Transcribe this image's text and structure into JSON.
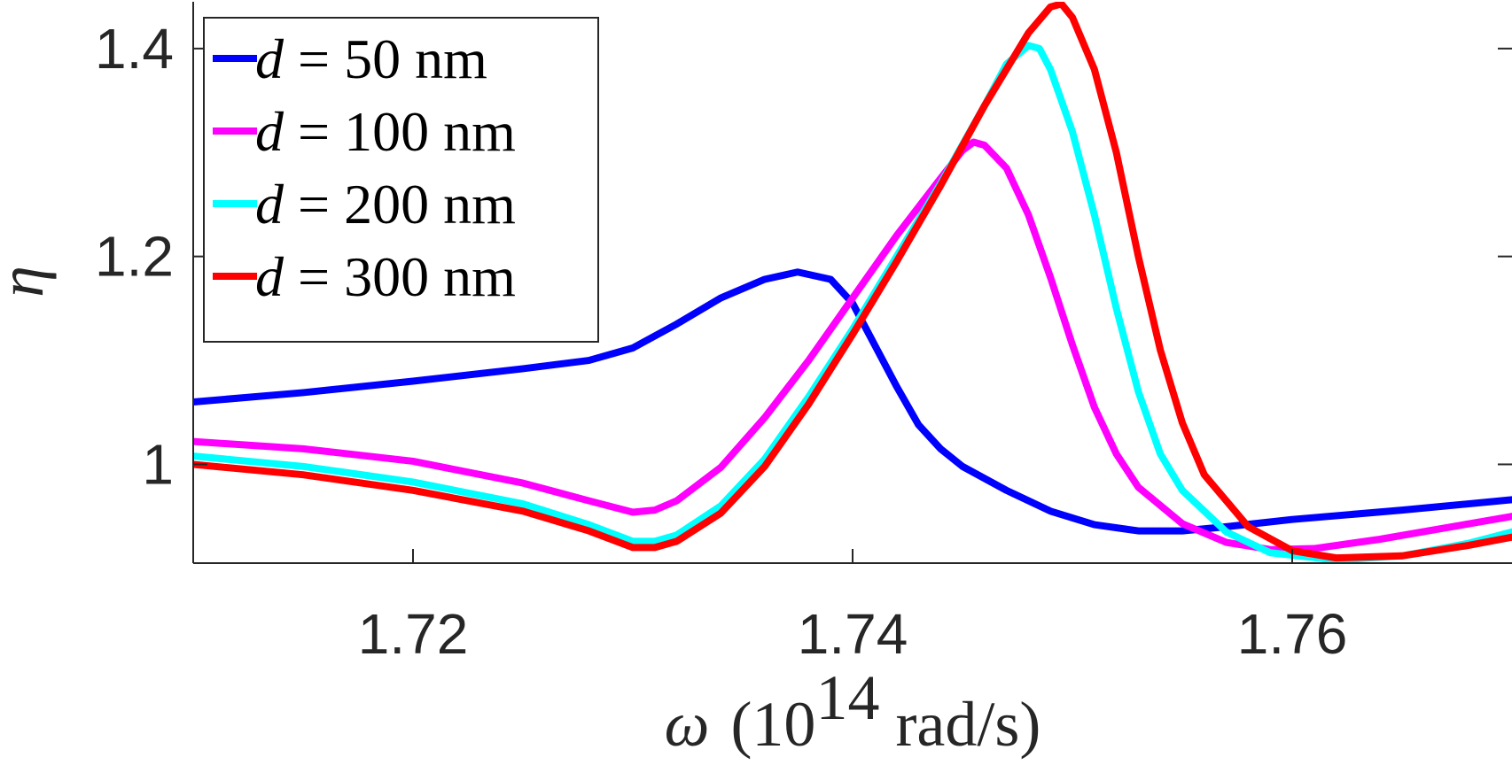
{
  "chart_data": {
    "type": "line",
    "title": "",
    "xlabel": {
      "symbol": "ω",
      "rest": "(10",
      "exponent": "14",
      "unit": "rad/s)"
    },
    "ylabel": "η",
    "xlim": [
      1.71,
      1.77
    ],
    "ylim": [
      0.905,
      1.445
    ],
    "xticks": [
      {
        "value": 1.72,
        "label": "1.72"
      },
      {
        "value": 1.74,
        "label": "1.74"
      },
      {
        "value": 1.76,
        "label": "1.76"
      }
    ],
    "yticks": [
      {
        "value": 1.0,
        "label": "1"
      },
      {
        "value": 1.2,
        "label": "1.2"
      },
      {
        "value": 1.4,
        "label": "1.4"
      }
    ],
    "grid": false,
    "legend_position": "top-left",
    "series": [
      {
        "name": "d = 50 nm",
        "legend_var": "d",
        "legend_rest": " = 50 nm",
        "color": "#0000ff",
        "points": [
          [
            1.71,
            1.06
          ],
          [
            1.715,
            1.069
          ],
          [
            1.72,
            1.08
          ],
          [
            1.725,
            1.092
          ],
          [
            1.728,
            1.1
          ],
          [
            1.73,
            1.112
          ],
          [
            1.732,
            1.135
          ],
          [
            1.734,
            1.16
          ],
          [
            1.736,
            1.178
          ],
          [
            1.7375,
            1.185
          ],
          [
            1.739,
            1.178
          ],
          [
            1.74,
            1.155
          ],
          [
            1.741,
            1.115
          ],
          [
            1.742,
            1.075
          ],
          [
            1.743,
            1.038
          ],
          [
            1.744,
            1.015
          ],
          [
            1.745,
            0.998
          ],
          [
            1.747,
            0.975
          ],
          [
            1.749,
            0.955
          ],
          [
            1.751,
            0.942
          ],
          [
            1.753,
            0.936
          ],
          [
            1.755,
            0.936
          ],
          [
            1.757,
            0.94
          ],
          [
            1.76,
            0.947
          ],
          [
            1.765,
            0.956
          ],
          [
            1.77,
            0.966
          ]
        ]
      },
      {
        "name": "d = 100 nm",
        "legend_var": "d",
        "legend_rest": " = 100 nm",
        "color": "#ff00ff",
        "points": [
          [
            1.71,
            1.022
          ],
          [
            1.715,
            1.015
          ],
          [
            1.72,
            1.003
          ],
          [
            1.725,
            0.982
          ],
          [
            1.728,
            0.965
          ],
          [
            1.73,
            0.954
          ],
          [
            1.731,
            0.956
          ],
          [
            1.732,
            0.965
          ],
          [
            1.734,
            0.997
          ],
          [
            1.736,
            1.045
          ],
          [
            1.738,
            1.1
          ],
          [
            1.74,
            1.16
          ],
          [
            1.742,
            1.22
          ],
          [
            1.744,
            1.275
          ],
          [
            1.745,
            1.302
          ],
          [
            1.7455,
            1.31
          ],
          [
            1.746,
            1.307
          ],
          [
            1.747,
            1.285
          ],
          [
            1.748,
            1.24
          ],
          [
            1.749,
            1.18
          ],
          [
            1.75,
            1.115
          ],
          [
            1.751,
            1.055
          ],
          [
            1.752,
            1.01
          ],
          [
            1.753,
            0.978
          ],
          [
            1.755,
            0.943
          ],
          [
            1.757,
            0.925
          ],
          [
            1.759,
            0.918
          ],
          [
            1.761,
            0.919
          ],
          [
            1.764,
            0.928
          ],
          [
            1.767,
            0.939
          ],
          [
            1.77,
            0.95
          ]
        ]
      },
      {
        "name": "d = 200 nm",
        "legend_var": "d",
        "legend_rest": " = 200 nm",
        "color": "#00ffff",
        "points": [
          [
            1.71,
            1.008
          ],
          [
            1.715,
            0.998
          ],
          [
            1.72,
            0.983
          ],
          [
            1.725,
            0.962
          ],
          [
            1.728,
            0.942
          ],
          [
            1.73,
            0.926
          ],
          [
            1.731,
            0.926
          ],
          [
            1.732,
            0.932
          ],
          [
            1.734,
            0.96
          ],
          [
            1.736,
            1.005
          ],
          [
            1.738,
            1.065
          ],
          [
            1.74,
            1.13
          ],
          [
            1.742,
            1.2
          ],
          [
            1.744,
            1.27
          ],
          [
            1.746,
            1.345
          ],
          [
            1.747,
            1.385
          ],
          [
            1.748,
            1.403
          ],
          [
            1.7485,
            1.4
          ],
          [
            1.749,
            1.38
          ],
          [
            1.75,
            1.32
          ],
          [
            1.751,
            1.24
          ],
          [
            1.752,
            1.15
          ],
          [
            1.753,
            1.07
          ],
          [
            1.754,
            1.01
          ],
          [
            1.755,
            0.975
          ],
          [
            1.757,
            0.935
          ],
          [
            1.759,
            0.915
          ],
          [
            1.762,
            0.908
          ],
          [
            1.765,
            0.912
          ],
          [
            1.768,
            0.924
          ],
          [
            1.77,
            0.935
          ]
        ]
      },
      {
        "name": "d = 300 nm",
        "legend_var": "d",
        "legend_rest": " = 300 nm",
        "color": "#ff0000",
        "points": [
          [
            1.71,
            1.0
          ],
          [
            1.715,
            0.99
          ],
          [
            1.72,
            0.975
          ],
          [
            1.725,
            0.955
          ],
          [
            1.728,
            0.936
          ],
          [
            1.73,
            0.92
          ],
          [
            1.731,
            0.92
          ],
          [
            1.732,
            0.926
          ],
          [
            1.734,
            0.953
          ],
          [
            1.736,
            0.998
          ],
          [
            1.738,
            1.058
          ],
          [
            1.74,
            1.125
          ],
          [
            1.742,
            1.195
          ],
          [
            1.744,
            1.268
          ],
          [
            1.746,
            1.345
          ],
          [
            1.748,
            1.415
          ],
          [
            1.749,
            1.44
          ],
          [
            1.7495,
            1.443
          ],
          [
            1.75,
            1.43
          ],
          [
            1.751,
            1.38
          ],
          [
            1.752,
            1.3
          ],
          [
            1.753,
            1.2
          ],
          [
            1.754,
            1.11
          ],
          [
            1.755,
            1.04
          ],
          [
            1.756,
            0.99
          ],
          [
            1.758,
            0.94
          ],
          [
            1.76,
            0.917
          ],
          [
            1.762,
            0.91
          ],
          [
            1.765,
            0.912
          ],
          [
            1.768,
            0.922
          ],
          [
            1.77,
            0.93
          ]
        ]
      }
    ]
  }
}
